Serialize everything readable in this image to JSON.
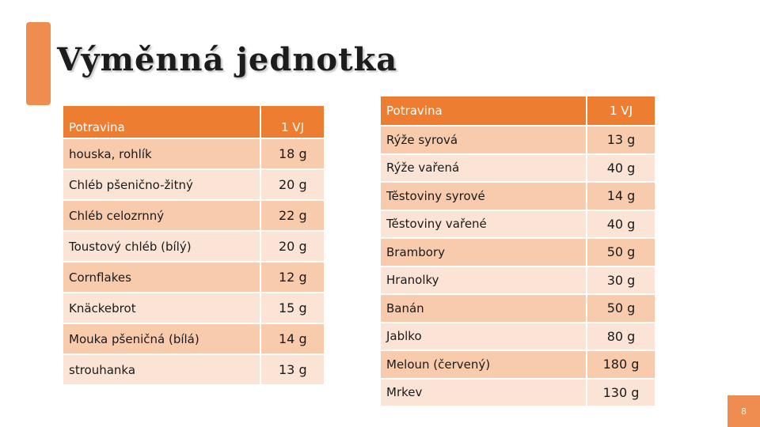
{
  "slide": {
    "title": "Výměnná jednotka",
    "page_number": "8",
    "accent_color": "#ed7d31"
  },
  "left_table": {
    "headers": [
      "Potravina",
      "1 VJ"
    ],
    "rows": [
      [
        "houska, rohlík",
        "18 g"
      ],
      [
        "Chléb pšenično-žitný",
        "20 g"
      ],
      [
        "Chléb celozrnný",
        "22 g"
      ],
      [
        "Toustový chléb (bílý)",
        "20 g"
      ],
      [
        "Cornflakes",
        "12 g"
      ],
      [
        "Knäckebrot",
        "15 g"
      ],
      [
        "Mouka pšeničná (bílá)",
        "14 g"
      ],
      [
        "strouhanka",
        "13 g"
      ]
    ]
  },
  "right_table": {
    "headers": [
      "Potravina",
      "1 VJ"
    ],
    "rows": [
      [
        "Rýže syrová",
        "13 g"
      ],
      [
        "Rýže vařená",
        "40 g"
      ],
      [
        "Těstoviny syrové",
        "14 g"
      ],
      [
        "Těstoviny vařené",
        "40 g"
      ],
      [
        "Brambory",
        "50 g"
      ],
      [
        "Hranolky",
        "30 g"
      ],
      [
        "Banán",
        "50 g"
      ],
      [
        "Jablko",
        "80 g"
      ],
      [
        "Meloun (červený)",
        "180 g"
      ],
      [
        "Mrkev",
        "130 g"
      ]
    ]
  }
}
